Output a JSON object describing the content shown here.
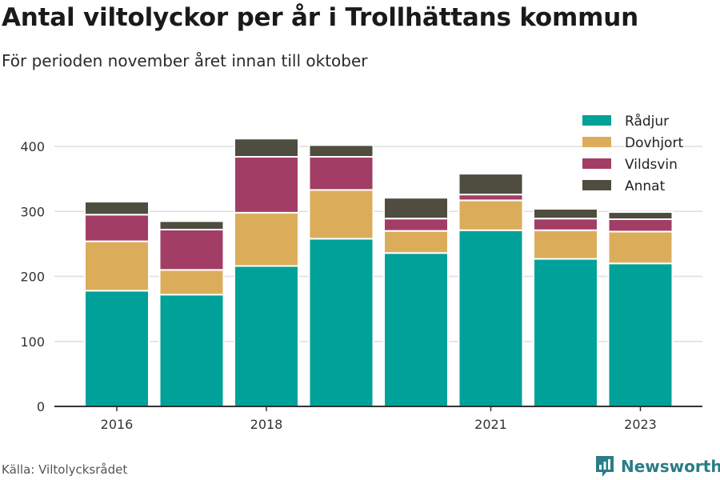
{
  "title": "Antal viltolyckor per år i Trollhättans kommun",
  "subtitle": "För perioden november året innan till oktober",
  "source": "Källa: Viltolycksrådet",
  "brand": {
    "name": "Newsworthy",
    "color": "#2a7d86",
    "icon": "newsworthy-logo-icon"
  },
  "chart_data": {
    "type": "bar",
    "stacked": true,
    "categories": [
      "2016",
      "2017",
      "2018",
      "2019",
      "2020",
      "2021",
      "2022",
      "2023"
    ],
    "x_tick_labels": [
      "2016",
      "",
      "2018",
      "",
      "",
      "2021",
      "",
      "2023"
    ],
    "series": [
      {
        "name": "Rådjur",
        "color": "#00a199",
        "values": [
          178,
          172,
          216,
          258,
          236,
          271,
          227,
          220
        ]
      },
      {
        "name": "Dovhjort",
        "color": "#dbad5b",
        "values": [
          76,
          38,
          82,
          75,
          34,
          46,
          44,
          49
        ]
      },
      {
        "name": "Vildsvin",
        "color": "#a23d66",
        "values": [
          41,
          62,
          86,
          51,
          19,
          9,
          18,
          19
        ]
      },
      {
        "name": "Annat",
        "color": "#4f4d40",
        "values": [
          20,
          13,
          28,
          18,
          32,
          32,
          15,
          11
        ]
      }
    ],
    "ylim": [
      0,
      450
    ],
    "yticks": [
      0,
      100,
      200,
      300,
      400
    ],
    "grid": true,
    "legend": "top-right"
  }
}
